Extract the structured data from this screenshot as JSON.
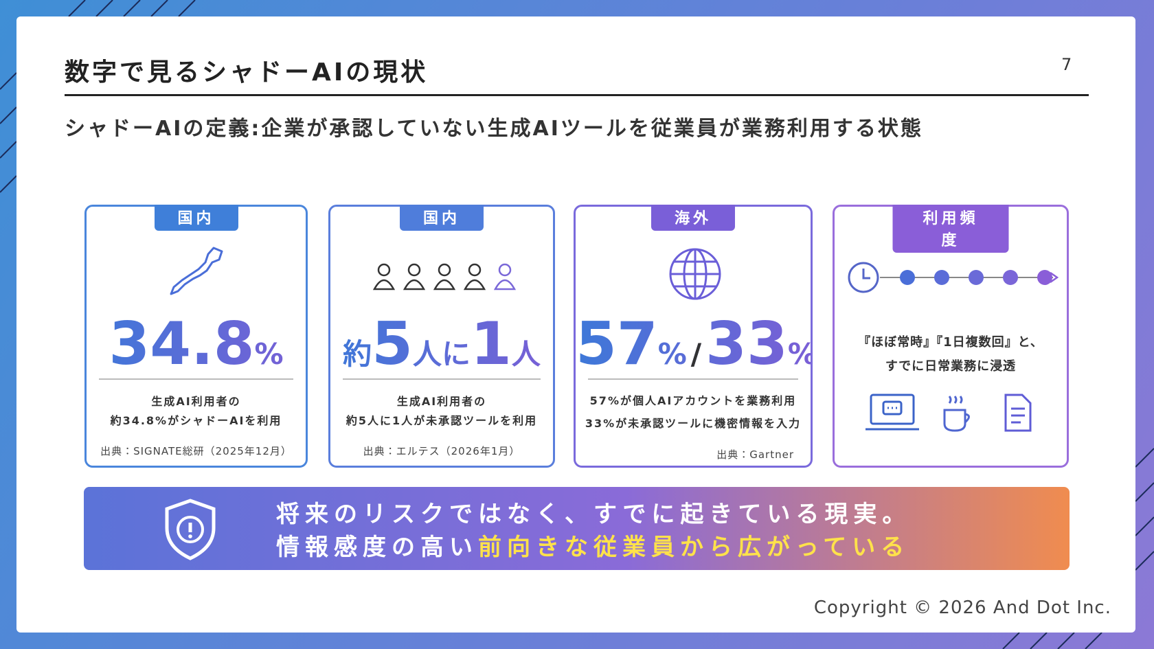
{
  "header": {
    "title": "数字で見るシャドーAIの現状",
    "page_number": "7"
  },
  "subtitle": "シャドーAIの定義:企業が承認していない生成AIツールを従業員が業務利用する状態",
  "cards": [
    {
      "tag": "国内",
      "figure": [
        "34.8",
        "%"
      ],
      "description": [
        "生成AI利用者の",
        "約34.8%がシャドーAIを利用"
      ],
      "source": "出典：SIGNATE総研（2025年12月）"
    },
    {
      "tag": "国内",
      "figure": [
        "約",
        "5",
        "人に",
        "1",
        "人"
      ],
      "description": [
        "生成AI利用者の",
        "約5人に1人が未承認ツールを利用"
      ],
      "source": "出典：エルテス（2026年1月）"
    },
    {
      "tag": "海外",
      "figure": [
        "57",
        "%",
        "/",
        "33",
        "%"
      ],
      "description": [
        "57%が個人AIアカウントを業務利用",
        "33%が未承認ツールに機密情報を入力"
      ],
      "source": "出典：Gartner"
    },
    {
      "tag": "利用頻度",
      "description": [
        "『ほぼ常時』『1日複数回』と、",
        "すでに日常業務に浸透"
      ]
    }
  ],
  "banner": {
    "line1": "将来のリスクではなく、すでに起きている現実。",
    "line2_plain": "情報感度の高い",
    "line2_highlight": "前向きな従業員から広がっている"
  },
  "copyright": "Copyright © 2026 And Dot Inc."
}
